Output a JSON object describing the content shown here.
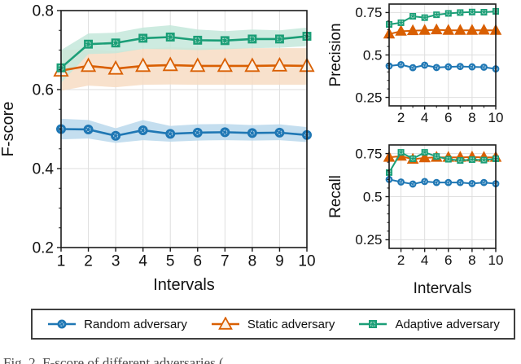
{
  "caption": {
    "text": "Fig. 2.  F-score of different adversaries (…"
  },
  "colors": {
    "random": "#1f77b4",
    "random_band": "#bad8ec",
    "random_inner": "#a6cbe3",
    "static": "#d95f02",
    "static_band": "#f7dcc3",
    "static_fill": "#fcf0e4",
    "adaptive": "#1b9e77",
    "adaptive_band": "#c4e8da",
    "adaptive_inner": "#aadcc8",
    "grid": "#dedede",
    "axis": "#1a1a1a",
    "legend_border": "#3f3f3f"
  },
  "legend": {
    "items": [
      {
        "label": "Random adversary",
        "key": "random",
        "marker": "circle"
      },
      {
        "label": "Static adversary",
        "key": "static",
        "marker": "triangle"
      },
      {
        "label": "Adaptive adversary",
        "key": "adaptive",
        "marker": "square"
      }
    ]
  },
  "chart_data": [
    {
      "type": "line",
      "title": "",
      "ylabel": "F-score",
      "xlabel": "Intervals",
      "x": [
        1,
        2,
        3,
        4,
        5,
        6,
        7,
        8,
        9,
        10
      ],
      "xlim": [
        1,
        10
      ],
      "ylim": [
        0.2,
        0.8
      ],
      "xticks": [
        "1",
        "2",
        "3",
        "4",
        "5",
        "6",
        "7",
        "8",
        "9",
        "10"
      ],
      "yticks": [
        "0.2",
        "0.4",
        "0.6",
        "0.8"
      ],
      "grid": true,
      "legend_position": "below-figure",
      "series": [
        {
          "name": "Random adversary",
          "key": "random",
          "marker": "circle",
          "values": [
            0.5,
            0.499,
            0.483,
            0.497,
            0.488,
            0.491,
            0.492,
            0.49,
            0.491,
            0.485
          ],
          "band_lower": [
            0.474,
            0.476,
            0.465,
            0.472,
            0.468,
            0.471,
            0.472,
            0.471,
            0.472,
            0.467
          ],
          "band_upper": [
            0.526,
            0.523,
            0.502,
            0.523,
            0.508,
            0.512,
            0.513,
            0.51,
            0.512,
            0.505
          ]
        },
        {
          "name": "Static adversary",
          "key": "static",
          "marker": "triangle",
          "values": [
            0.648,
            0.66,
            0.653,
            0.66,
            0.662,
            0.66,
            0.66,
            0.66,
            0.661,
            0.66
          ],
          "band_lower": [
            0.597,
            0.61,
            0.606,
            0.612,
            0.613,
            0.612,
            0.612,
            0.612,
            0.612,
            0.612
          ],
          "band_upper": [
            0.7,
            0.702,
            0.697,
            0.703,
            0.707,
            0.705,
            0.705,
            0.705,
            0.705,
            0.705
          ]
        },
        {
          "name": "Adaptive adversary",
          "key": "adaptive",
          "marker": "square",
          "values": [
            0.655,
            0.715,
            0.718,
            0.73,
            0.733,
            0.725,
            0.724,
            0.728,
            0.728,
            0.735
          ],
          "band_lower": [
            0.617,
            0.69,
            0.692,
            0.703,
            0.702,
            0.7,
            0.702,
            0.705,
            0.706,
            0.71
          ],
          "band_upper": [
            0.7,
            0.742,
            0.744,
            0.757,
            0.763,
            0.752,
            0.748,
            0.752,
            0.75,
            0.757
          ]
        }
      ]
    },
    {
      "type": "line",
      "title": "",
      "ylabel": "Precision",
      "xlabel": "",
      "x": [
        1,
        2,
        3,
        4,
        5,
        6,
        7,
        8,
        9,
        10
      ],
      "xlim": [
        1,
        10
      ],
      "ylim": [
        0.2,
        0.8
      ],
      "xticks": [
        "2",
        "4",
        "6",
        "8",
        "10"
      ],
      "yticks": [
        "0.25",
        "0.5",
        "0.75"
      ],
      "grid": true,
      "series": [
        {
          "name": "Random adversary",
          "key": "random",
          "marker": "circle",
          "values": [
            0.435,
            0.443,
            0.425,
            0.44,
            0.426,
            0.43,
            0.432,
            0.43,
            0.428,
            0.418
          ]
        },
        {
          "name": "Static adversary",
          "key": "static",
          "marker": "triangle",
          "values": [
            0.623,
            0.64,
            0.643,
            0.645,
            0.648,
            0.645,
            0.645,
            0.645,
            0.646,
            0.645
          ]
        },
        {
          "name": "Adaptive adversary",
          "key": "adaptive",
          "marker": "square",
          "values": [
            0.68,
            0.69,
            0.728,
            0.72,
            0.737,
            0.745,
            0.75,
            0.753,
            0.752,
            0.757
          ]
        }
      ]
    },
    {
      "type": "line",
      "title": "",
      "ylabel": "Recall",
      "xlabel": "Intervals",
      "x": [
        1,
        2,
        3,
        4,
        5,
        6,
        7,
        8,
        9,
        10
      ],
      "xlim": [
        1,
        10
      ],
      "ylim": [
        0.2,
        0.8
      ],
      "xticks": [
        "2",
        "4",
        "6",
        "8",
        "10"
      ],
      "yticks": [
        "0.25",
        "0.5",
        "0.75"
      ],
      "grid": true,
      "series": [
        {
          "name": "Random adversary",
          "key": "random",
          "marker": "circle",
          "values": [
            0.6,
            0.585,
            0.573,
            0.588,
            0.582,
            0.582,
            0.582,
            0.576,
            0.582,
            0.575
          ]
        },
        {
          "name": "Static adversary",
          "key": "static",
          "marker": "triangle",
          "values": [
            0.728,
            0.735,
            0.717,
            0.725,
            0.728,
            0.728,
            0.728,
            0.73,
            0.728,
            0.728
          ]
        },
        {
          "name": "Adaptive adversary",
          "key": "adaptive",
          "marker": "square",
          "values": [
            0.64,
            0.757,
            0.72,
            0.757,
            0.733,
            0.717,
            0.71,
            0.715,
            0.712,
            0.72
          ]
        }
      ]
    }
  ]
}
